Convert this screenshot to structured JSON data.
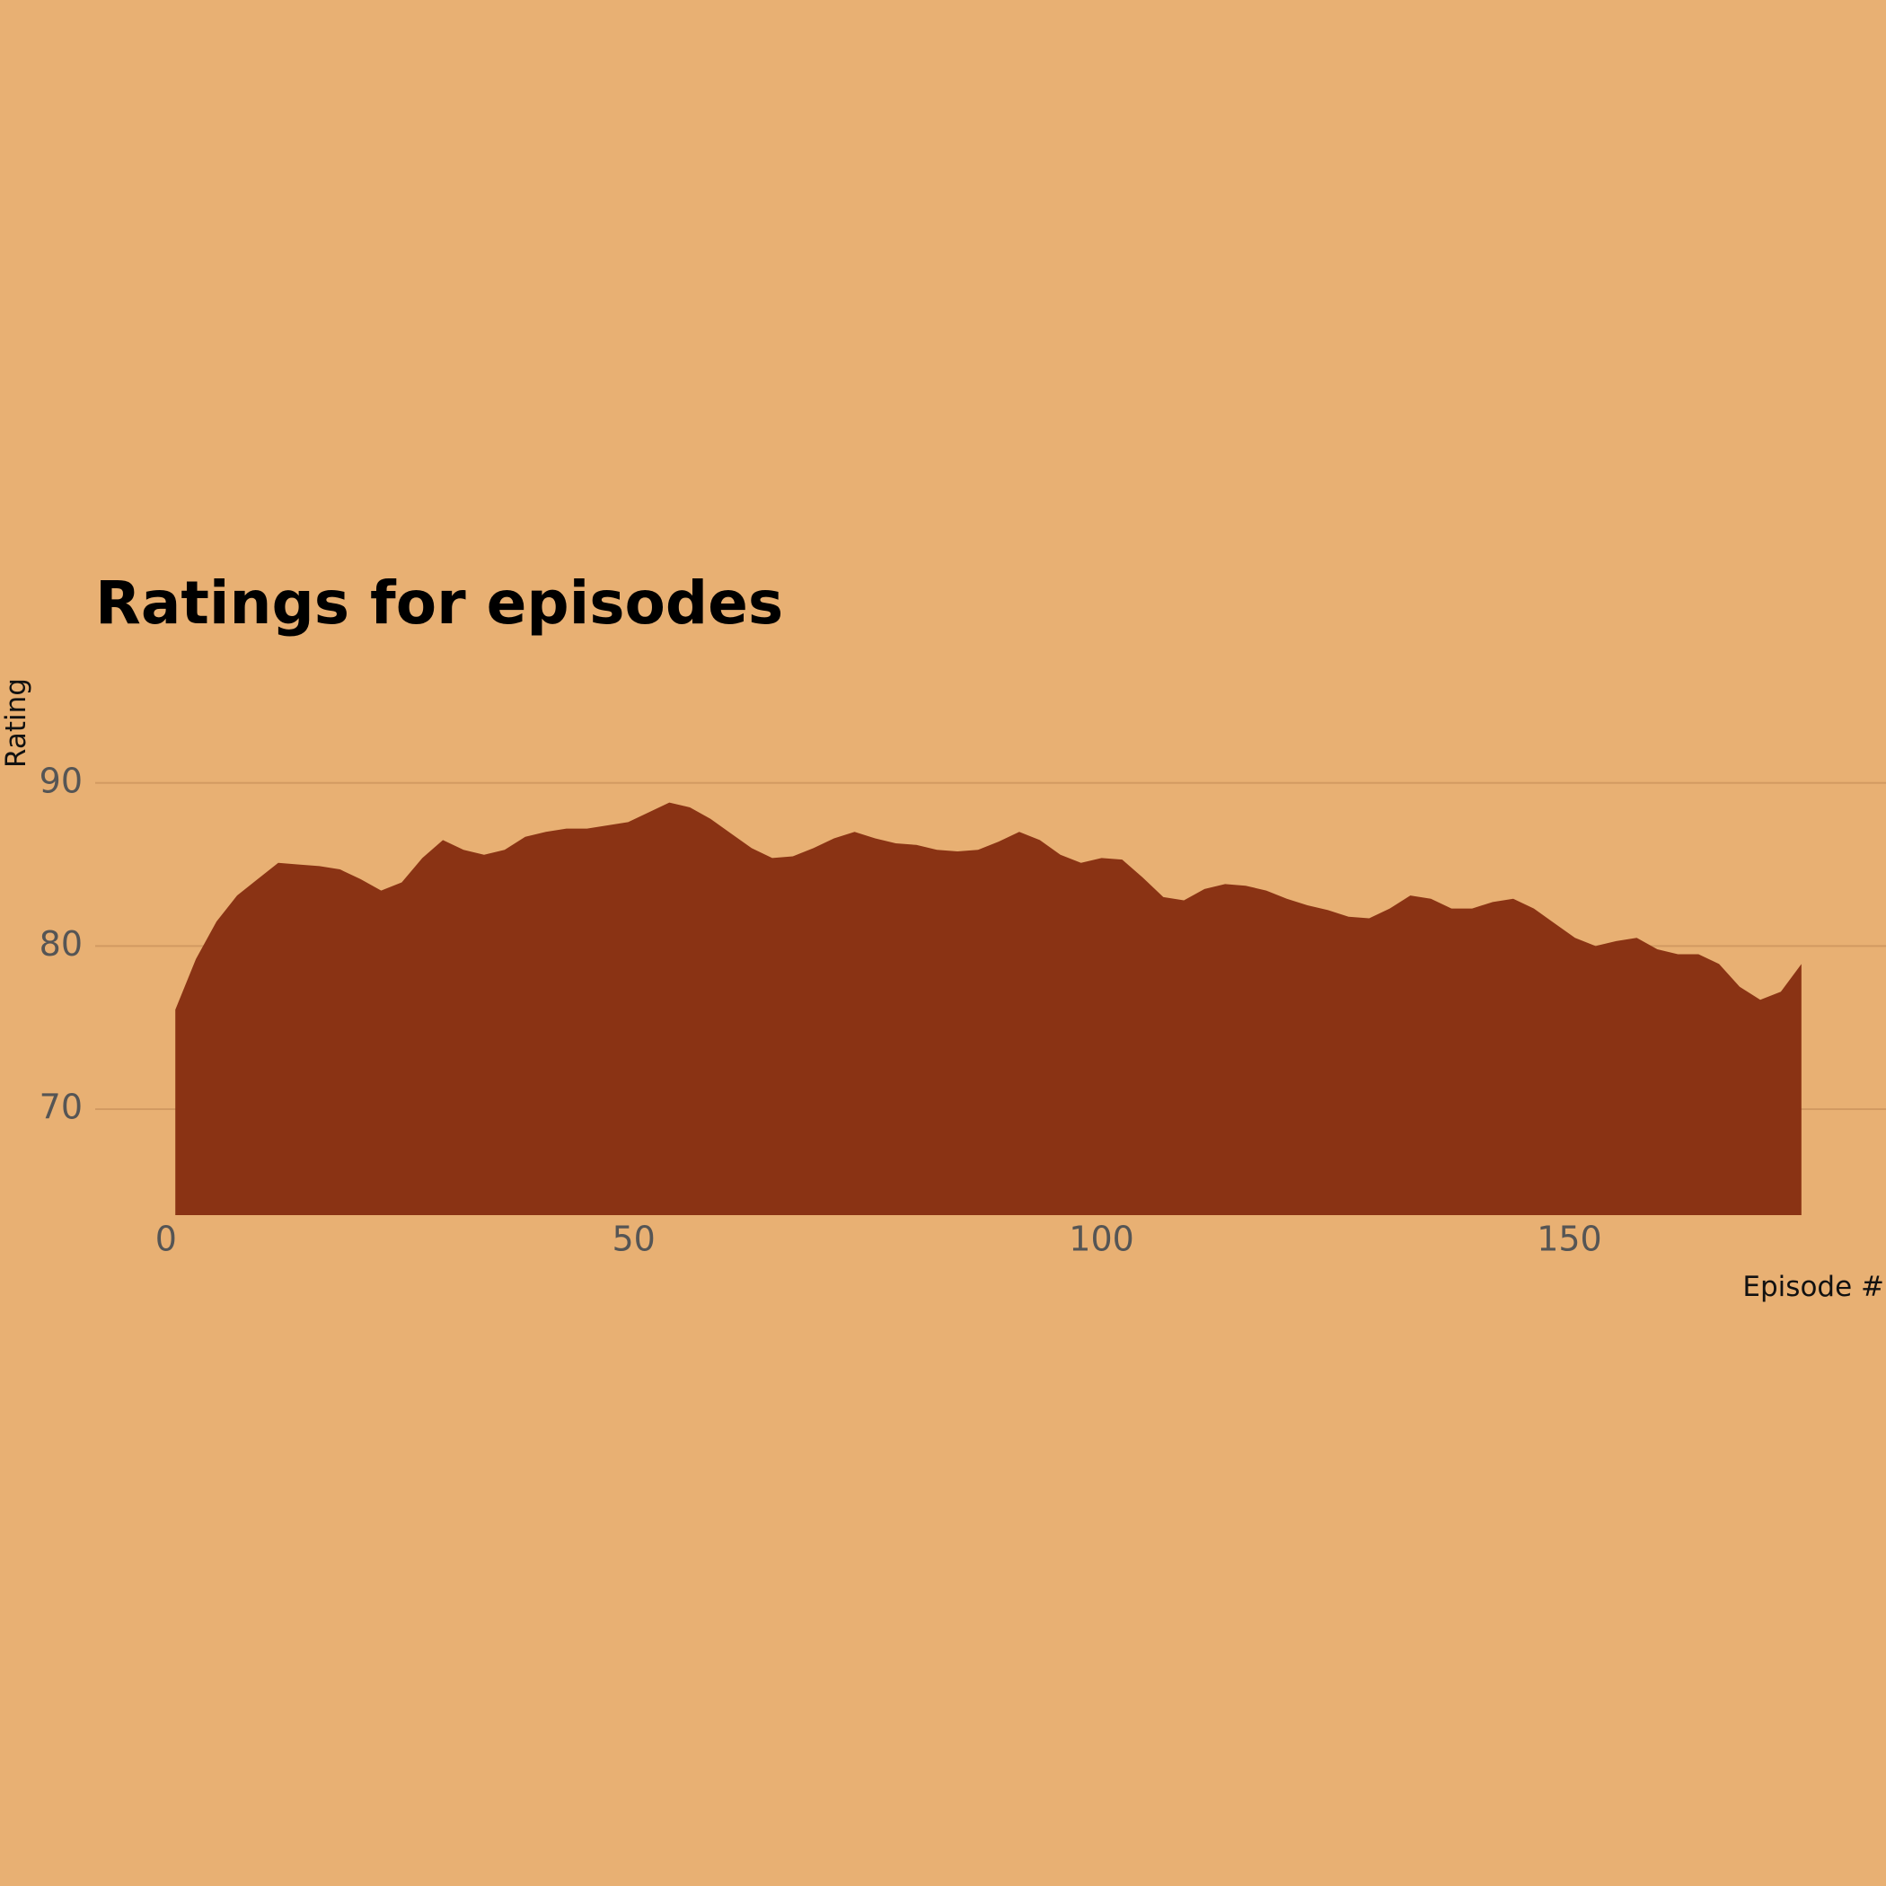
{
  "chart_data": {
    "type": "area",
    "title": "Ratings for episodes",
    "x_label": "Episode #",
    "y_label": "Rating",
    "color": "#8a3314",
    "grid": true,
    "xlim": [
      0,
      180
    ],
    "ylim": [
      63.5,
      95
    ],
    "xticks": [
      0,
      50,
      100,
      150
    ],
    "yticks": [
      70,
      80,
      90
    ],
    "x": [
      1,
      3.2,
      5.4,
      7.6,
      9.8,
      12,
      14.2,
      16.4,
      18.6,
      20.8,
      23,
      25.2,
      27.4,
      29.6,
      31.8,
      34,
      36.2,
      38.4,
      40.6,
      42.8,
      45,
      47.2,
      49.4,
      51.6,
      53.8,
      56,
      58.2,
      60.4,
      62.6,
      64.8,
      67,
      69.2,
      71.4,
      73.6,
      75.8,
      78,
      80.2,
      82.4,
      84.6,
      86.8,
      89,
      91.2,
      93.4,
      95.6,
      97.8,
      100,
      102.2,
      104.4,
      106.6,
      108.8,
      111,
      113.2,
      115.4,
      117.6,
      119.8,
      122,
      124.2,
      126.4,
      128.6,
      130.8,
      133,
      135.2,
      137.4,
      139.6,
      141.8,
      144,
      146.2,
      148.4,
      150.6,
      152.8,
      155,
      157.2,
      159.4,
      161.6,
      163.8,
      166,
      168.2,
      170.4,
      172.6,
      174.8
    ],
    "values": [
      76.1,
      79.2,
      81.5,
      83.1,
      84.1,
      85.1,
      85.0,
      84.9,
      84.7,
      84.1,
      83.4,
      83.9,
      85.4,
      86.5,
      85.9,
      85.6,
      85.9,
      86.7,
      87.0,
      87.2,
      87.2,
      87.4,
      87.6,
      88.2,
      88.8,
      88.5,
      87.8,
      86.9,
      86.0,
      85.4,
      85.5,
      86.0,
      86.6,
      87.0,
      86.6,
      86.3,
      86.2,
      85.9,
      85.8,
      85.9,
      86.4,
      87.0,
      86.5,
      85.6,
      85.1,
      85.4,
      85.3,
      84.2,
      83.0,
      82.8,
      83.5,
      83.8,
      83.7,
      83.4,
      82.9,
      82.5,
      82.2,
      81.8,
      81.7,
      82.3,
      83.1,
      82.9,
      82.3,
      82.3,
      82.7,
      82.9,
      82.3,
      81.4,
      80.5,
      80.0,
      80.3,
      80.5,
      79.8,
      79.5,
      79.5,
      78.9,
      77.5,
      76.7,
      77.2,
      78.9
    ]
  }
}
